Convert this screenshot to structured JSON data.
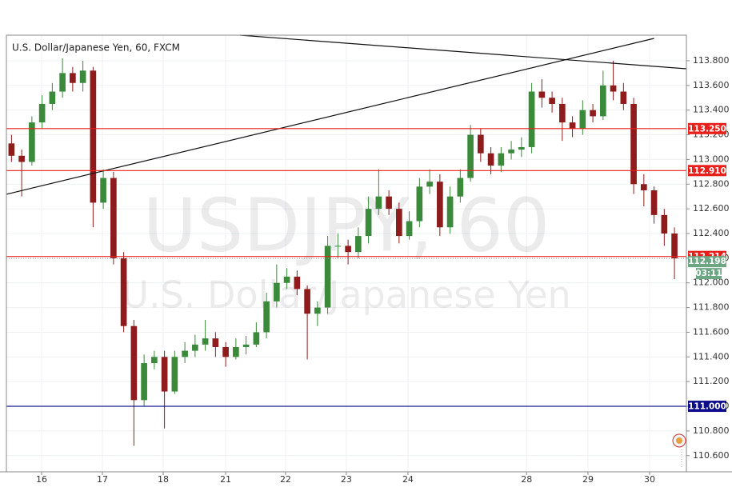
{
  "chart_data": {
    "type": "candlestick",
    "title": "U.S. Dollar/Japanese Yen, 60, FXCM",
    "watermark": [
      "USDJPY, 60",
      "U.S. Dollar/Japanese Yen"
    ],
    "up_color": "#3b8a3b",
    "down_color": "#8e1c1c",
    "grid": true,
    "xlim": [
      -0.5,
      66.17
    ],
    "xticks": [
      {
        "value": 2.95,
        "label": "16"
      },
      {
        "value": 8.91,
        "label": "17"
      },
      {
        "value": 14.87,
        "label": "18"
      },
      {
        "value": 20.99,
        "label": "21"
      },
      {
        "value": 26.87,
        "label": "22"
      },
      {
        "value": 32.83,
        "label": "23"
      },
      {
        "value": 38.87,
        "label": "24"
      },
      {
        "value": 50.5,
        "label": "28"
      },
      {
        "value": 56.52,
        "label": "29"
      },
      {
        "value": 62.56,
        "label": "30"
      }
    ],
    "ylim": [
      110.469,
      114.007
    ],
    "yticks": [
      {
        "value": 110.6,
        "label": "110.600"
      },
      {
        "value": 110.8,
        "label": "110.800"
      },
      {
        "value": 111.0,
        "label": "111.000"
      },
      {
        "value": 111.2,
        "label": "111.200"
      },
      {
        "value": 111.4,
        "label": "111.400"
      },
      {
        "value": 111.6,
        "label": "111.600"
      },
      {
        "value": 111.8,
        "label": "111.800"
      },
      {
        "value": 112.0,
        "label": "112.000"
      },
      {
        "value": 112.2,
        "label": "112.200"
      },
      {
        "value": 112.4,
        "label": "112.400"
      },
      {
        "value": 112.6,
        "label": "112.600"
      },
      {
        "value": 112.8,
        "label": "112.800"
      },
      {
        "value": 113.0,
        "label": "113.000"
      },
      {
        "value": 113.2,
        "label": "113.200"
      },
      {
        "value": 113.4,
        "label": "113.400"
      },
      {
        "value": 113.6,
        "label": "113.600"
      },
      {
        "value": 113.8,
        "label": "113.800"
      }
    ],
    "x": [
      0,
      1,
      2,
      3,
      4,
      5,
      6,
      7,
      8,
      9,
      10,
      11,
      12,
      13,
      14,
      15,
      16,
      17,
      18,
      19,
      20,
      21,
      22,
      23,
      24,
      25,
      26,
      27,
      28,
      29,
      30,
      31,
      32,
      33,
      34,
      35,
      36,
      37,
      38,
      39,
      40,
      41,
      42,
      43,
      44,
      45,
      46,
      47,
      48,
      49,
      50,
      51,
      52,
      53,
      54,
      55,
      56,
      57,
      58,
      59,
      60,
      61,
      62,
      63,
      64,
      65
    ],
    "open": [
      113.13,
      113.03,
      112.98,
      113.3,
      113.45,
      113.55,
      113.7,
      113.62,
      113.72,
      112.65,
      112.85,
      112.2,
      111.65,
      111.05,
      111.35,
      111.4,
      111.12,
      111.4,
      111.45,
      111.5,
      111.55,
      111.48,
      111.4,
      111.48,
      111.5,
      111.6,
      111.85,
      112.0,
      112.05,
      111.95,
      111.75,
      111.8,
      112.3,
      112.3,
      112.25,
      112.38,
      112.6,
      112.7,
      112.6,
      112.38,
      112.5,
      112.78,
      112.82,
      112.45,
      112.7,
      112.85,
      113.2,
      113.05,
      112.95,
      113.05,
      113.08,
      113.1,
      113.55,
      113.5,
      113.45,
      113.3,
      113.25,
      113.4,
      113.35,
      113.6,
      113.55,
      113.45,
      112.8,
      112.75,
      112.55,
      112.4
    ],
    "high": [
      113.2,
      113.08,
      113.35,
      113.52,
      113.62,
      113.82,
      113.75,
      113.8,
      113.75,
      112.92,
      112.9,
      112.25,
      111.7,
      111.42,
      111.45,
      111.45,
      111.45,
      111.52,
      111.58,
      111.7,
      111.6,
      111.52,
      111.55,
      111.57,
      111.68,
      111.92,
      112.15,
      112.12,
      112.1,
      111.98,
      111.85,
      112.38,
      112.4,
      112.35,
      112.45,
      112.7,
      112.92,
      112.75,
      112.65,
      112.58,
      112.85,
      112.92,
      112.88,
      112.78,
      112.92,
      113.28,
      113.25,
      113.1,
      113.1,
      113.15,
      113.18,
      113.62,
      113.65,
      113.55,
      113.5,
      113.35,
      113.48,
      113.45,
      113.72,
      113.8,
      113.62,
      113.5,
      112.88,
      112.78,
      112.6,
      112.45
    ],
    "low": [
      112.98,
      112.7,
      112.95,
      113.25,
      113.4,
      113.5,
      113.55,
      113.55,
      112.45,
      112.6,
      112.15,
      111.6,
      110.68,
      111.0,
      111.3,
      110.82,
      111.1,
      111.35,
      111.4,
      111.45,
      111.4,
      111.32,
      111.38,
      111.42,
      111.48,
      111.55,
      111.8,
      111.95,
      111.9,
      111.38,
      111.65,
      111.75,
      112.2,
      112.15,
      112.2,
      112.32,
      112.55,
      112.55,
      112.32,
      112.35,
      112.45,
      112.72,
      112.38,
      112.4,
      112.65,
      112.82,
      112.98,
      112.88,
      112.9,
      113.0,
      113.02,
      113.05,
      113.42,
      113.38,
      113.15,
      113.18,
      113.2,
      113.3,
      113.32,
      113.48,
      113.4,
      112.72,
      112.62,
      112.48,
      112.3,
      112.03
    ],
    "close": [
      113.03,
      112.98,
      113.3,
      113.45,
      113.55,
      113.7,
      113.62,
      113.72,
      112.65,
      112.85,
      112.2,
      111.65,
      111.05,
      111.35,
      111.4,
      111.12,
      111.4,
      111.45,
      111.5,
      111.55,
      111.48,
      111.4,
      111.48,
      111.5,
      111.6,
      111.85,
      112.0,
      112.05,
      111.95,
      111.75,
      111.8,
      112.3,
      112.3,
      112.25,
      112.38,
      112.6,
      112.7,
      112.6,
      112.38,
      112.5,
      112.78,
      112.82,
      112.45,
      112.7,
      112.85,
      113.2,
      113.05,
      112.95,
      113.05,
      113.08,
      113.1,
      113.55,
      113.5,
      113.45,
      113.3,
      113.25,
      113.4,
      113.35,
      113.6,
      113.55,
      113.45,
      112.8,
      112.75,
      112.55,
      112.4,
      112.198
    ],
    "levels": [
      {
        "value": 113.25,
        "label": "113.250",
        "color": "#e8201c"
      },
      {
        "value": 112.91,
        "label": "112.910",
        "color": "#e8201c"
      },
      {
        "value": 112.214,
        "label": "112.214",
        "color": "#e8201c"
      },
      {
        "value": 111.0,
        "label": "111.000",
        "color": "#0d0d8c"
      }
    ],
    "current_price": {
      "value": 112.198,
      "label": "112.198",
      "color": "#6ca683",
      "countdown": "03:11"
    },
    "trendlines": [
      {
        "x": [
          22.4,
          66.17
        ],
        "y": [
          114.007,
          113.735
        ],
        "color": "#111"
      },
      {
        "x": [
          -0.5,
          63.0
        ],
        "y": [
          112.718,
          113.981
        ],
        "color": "#111"
      }
    ]
  }
}
